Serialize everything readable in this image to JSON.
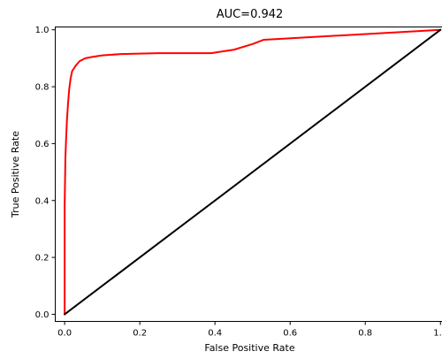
{
  "chart_data": {
    "type": "line",
    "title": "AUC=0.942",
    "xlabel": "False Positive Rate",
    "ylabel": "True Positive Rate",
    "xlim": [
      -0.025,
      1.01
    ],
    "ylim": [
      -0.025,
      1.01
    ],
    "xticks": [
      "0.0",
      "0.2",
      "0.4",
      "0.6",
      "0.8",
      "1.0"
    ],
    "yticks": [
      "0.0",
      "0.2",
      "0.4",
      "0.6",
      "0.8",
      "1.0"
    ],
    "grid": false,
    "series": [
      {
        "color": "#ff0000",
        "x": [
          0.0,
          0.0,
          0.002,
          0.004,
          0.006,
          0.009,
          0.012,
          0.016,
          0.02,
          0.03,
          0.04,
          0.055,
          0.075,
          0.1,
          0.15,
          0.25,
          0.39,
          0.45,
          0.5,
          0.53,
          1.0
        ],
        "y": [
          0.0,
          0.38,
          0.55,
          0.62,
          0.68,
          0.74,
          0.79,
          0.83,
          0.855,
          0.875,
          0.89,
          0.9,
          0.905,
          0.91,
          0.915,
          0.918,
          0.918,
          0.93,
          0.95,
          0.965,
          1.0
        ]
      },
      {
        "color": "#000000",
        "x": [
          0.0,
          1.0
        ],
        "y": [
          0.0,
          1.0
        ]
      }
    ]
  }
}
